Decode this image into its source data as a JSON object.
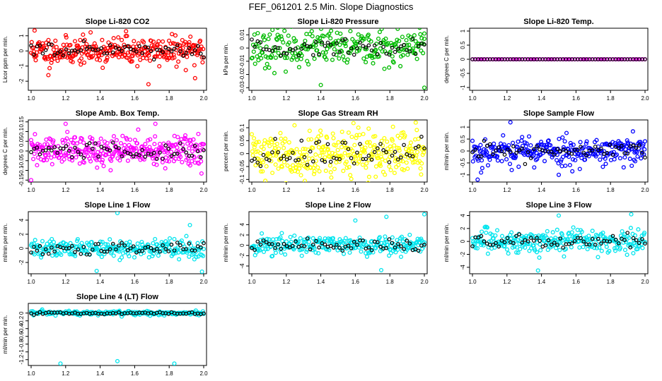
{
  "title": "FEF_061201  2.5 Min. Slope Diagnostics",
  "chart_data": [
    {
      "type": "scatter",
      "title": "Slope Li-820 CO2",
      "ylabel": "Licor ppm per min.",
      "xlim": [
        1.0,
        2.0
      ],
      "ylim": [
        -2.6,
        1.5
      ],
      "yticks": [
        -2,
        -1,
        0,
        1
      ],
      "xticks": [
        "1.0",
        "1.2",
        "1.4",
        "1.6",
        "1.8",
        "2.0"
      ],
      "color": "#ff0000",
      "spread": 0.45,
      "n": 300,
      "outliers": [
        [
          1.02,
          1.35
        ],
        [
          1.1,
          -1.6
        ],
        [
          1.55,
          1.3
        ],
        [
          1.68,
          -2.2
        ],
        [
          1.95,
          -1.8
        ]
      ],
      "seed": 11
    },
    {
      "type": "scatter",
      "title": "Slope Li-820 Pressure",
      "ylabel": "kPa per min.",
      "xlim": [
        1.0,
        2.0
      ],
      "ylim": [
        -0.032,
        0.015
      ],
      "yticks": [
        -0.03,
        -0.02,
        -0.01,
        0,
        0.01
      ],
      "xticks": [
        "1.0",
        "1.2",
        "1.4",
        "1.6",
        "1.8",
        "2.0"
      ],
      "color": "#00bb00",
      "spread": 0.007,
      "n": 260,
      "outliers": [
        [
          1.4,
          -0.028
        ],
        [
          2.0,
          -0.03
        ],
        [
          2.0,
          0.011
        ],
        [
          1.15,
          0.01
        ]
      ],
      "seed": 23
    },
    {
      "type": "scatter",
      "title": "Slope Li-820 Temp.",
      "ylabel": "degrees C per min.",
      "xlim": [
        1.0,
        2.0
      ],
      "ylim": [
        -1.1,
        1.1
      ],
      "yticks": [
        -1,
        -0.5,
        0,
        0.5,
        1
      ],
      "xticks": [
        "1.0",
        "1.2",
        "1.4",
        "1.6",
        "1.8",
        "2.0"
      ],
      "color": "#ff00ff",
      "spread": 0.0,
      "n": 70,
      "outliers": [],
      "seed": 5
    },
    {
      "type": "scatter",
      "title": "Slope Amb. Box Temp.",
      "ylabel": "degrees C per min.",
      "xlim": [
        1.0,
        2.0
      ],
      "ylim": [
        -0.16,
        0.16
      ],
      "yticks": [
        -0.15,
        -0.1,
        -0.05,
        0,
        0.05,
        0.1,
        0.15
      ],
      "xticks": [
        "1.0",
        "1.2",
        "1.4",
        "1.6",
        "1.8",
        "2.0"
      ],
      "color": "#ff00ff",
      "spread": 0.04,
      "n": 320,
      "outliers": [
        [
          1.2,
          0.14
        ],
        [
          1.0,
          -0.15
        ],
        [
          1.72,
          0.14
        ]
      ],
      "seed": 31
    },
    {
      "type": "scatter",
      "title": "Slope Gas Stream RH",
      "ylabel": "percent per min.",
      "xlim": [
        1.0,
        2.0
      ],
      "ylim": [
        -0.11,
        0.13
      ],
      "yticks": [
        -0.1,
        -0.05,
        0,
        0.05,
        0.1
      ],
      "xticks": [
        "1.0",
        "1.2",
        "1.4",
        "1.6",
        "1.8",
        "2.0"
      ],
      "color": "#ffff00",
      "spread": 0.045,
      "n": 320,
      "outliers": [
        [
          1.95,
          0.12
        ],
        [
          1.68,
          -0.09
        ]
      ],
      "seed": 41
    },
    {
      "type": "scatter",
      "title": "Slope Sample Flow",
      "ylabel": "ml/min per min.",
      "xlim": [
        1.0,
        2.0
      ],
      "ylim": [
        -1.3,
        1.3
      ],
      "yticks": [
        -1,
        -0.5,
        0,
        0.5,
        1
      ],
      "xticks": [
        "1.0",
        "1.2",
        "1.4",
        "1.6",
        "1.8",
        "2.0"
      ],
      "color": "#0000ff",
      "spread": 0.3,
      "n": 300,
      "outliers": [
        [
          1.05,
          -0.9
        ],
        [
          1.22,
          1.2
        ],
        [
          1.5,
          -1.0
        ],
        [
          1.03,
          -1.2
        ]
      ],
      "seed": 53
    },
    {
      "type": "scatter",
      "title": "Slope Line 1 Flow",
      "ylabel": "ml/min per min.",
      "xlim": [
        1.0,
        2.0
      ],
      "ylim": [
        -3.6,
        5.2
      ],
      "yticks": [
        -2,
        0,
        2,
        4
      ],
      "xticks": [
        "1.0",
        "1.2",
        "1.4",
        "1.6",
        "1.8",
        "2.0"
      ],
      "color": "#00e5ee",
      "spread": 0.7,
      "n": 260,
      "outliers": [
        [
          1.5,
          5.0
        ],
        [
          1.38,
          -3.2
        ],
        [
          1.99,
          -3.3
        ],
        [
          1.92,
          3.3
        ]
      ],
      "seed": 61
    },
    {
      "type": "scatter",
      "title": "Slope Line 2 Flow",
      "ylabel": "ml/min per min.",
      "xlim": [
        1.0,
        2.0
      ],
      "ylim": [
        -5.5,
        6.5
      ],
      "yticks": [
        -4,
        -2,
        0,
        2,
        4
      ],
      "xticks": [
        "1.0",
        "1.2",
        "1.4",
        "1.6",
        "1.8",
        "2.0"
      ],
      "color": "#00e5ee",
      "spread": 1.0,
      "n": 260,
      "outliers": [
        [
          1.75,
          -4.8
        ],
        [
          1.78,
          5.5
        ],
        [
          2.0,
          6.0
        ],
        [
          1.6,
          4.8
        ]
      ],
      "seed": 71
    },
    {
      "type": "scatter",
      "title": "Slope Line 3 Flow",
      "ylabel": "ml/min per min.",
      "xlim": [
        1.0,
        2.0
      ],
      "ylim": [
        -5.0,
        4.6
      ],
      "yticks": [
        -4,
        -2,
        0,
        2,
        4
      ],
      "xticks": [
        "1.0",
        "1.2",
        "1.4",
        "1.6",
        "1.8",
        "2.0"
      ],
      "color": "#00e5ee",
      "spread": 0.9,
      "n": 280,
      "outliers": [
        [
          1.38,
          -4.5
        ],
        [
          1.92,
          4.2
        ],
        [
          1.5,
          4.0
        ]
      ],
      "seed": 83
    },
    {
      "type": "scatter",
      "title": "Slope Line 4 (LT) Flow",
      "ylabel": "ml/min per min.",
      "xlim": [
        1.0,
        2.0
      ],
      "ylim": [
        -1.35,
        0.25
      ],
      "yticks": [
        -1.2,
        -1,
        -0.8,
        -0.6,
        -0.4,
        -0.2,
        0
      ],
      "xticks": [
        "1.0",
        "1.2",
        "1.4",
        "1.6",
        "1.8",
        "2.0"
      ],
      "color": "#00e5ee",
      "spread": 0.03,
      "n": 220,
      "outliers": [
        [
          1.17,
          -1.3
        ],
        [
          1.5,
          -1.24
        ],
        [
          1.83,
          -1.3
        ]
      ],
      "seed": 97
    }
  ]
}
